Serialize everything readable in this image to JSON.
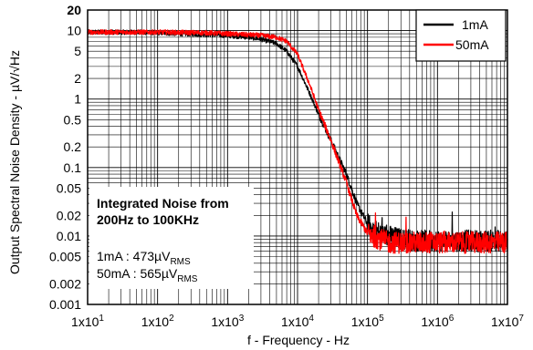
{
  "chart_data": {
    "type": "line",
    "xlabel": "f - Frequency - Hz",
    "ylabel": "Output Spectral Noise Density - µV/√Hz",
    "x_scale": "log",
    "y_scale": "log",
    "xlim": [
      10,
      10000000
    ],
    "ylim": [
      0.001,
      20
    ],
    "x_ticks": [
      {
        "value": 10,
        "label": "1x10",
        "exp": "1"
      },
      {
        "value": 100,
        "label": "1x10",
        "exp": "2"
      },
      {
        "value": 1000,
        "label": "1x10",
        "exp": "3"
      },
      {
        "value": 10000,
        "label": "1x10",
        "exp": "4"
      },
      {
        "value": 100000,
        "label": "1x10",
        "exp": "5"
      },
      {
        "value": 1000000,
        "label": "1x10",
        "exp": "6"
      },
      {
        "value": 10000000,
        "label": "1x10",
        "exp": "7"
      }
    ],
    "y_ticks": [
      {
        "value": 20,
        "label": "20",
        "bold": true
      },
      {
        "value": 10,
        "label": "10"
      },
      {
        "value": 5,
        "label": "5"
      },
      {
        "value": 2,
        "label": "2"
      },
      {
        "value": 1,
        "label": "1"
      },
      {
        "value": 0.5,
        "label": "0.5"
      },
      {
        "value": 0.2,
        "label": "0.2"
      },
      {
        "value": 0.1,
        "label": "0.1"
      },
      {
        "value": 0.05,
        "label": "0.05"
      },
      {
        "value": 0.02,
        "label": "0.02"
      },
      {
        "value": 0.01,
        "label": "0.01"
      },
      {
        "value": 0.005,
        "label": "0.005"
      },
      {
        "value": 0.002,
        "label": "0.002"
      },
      {
        "value": 0.001,
        "label": "0.001"
      }
    ],
    "grid": true,
    "legend": {
      "position": "top-right"
    },
    "series": [
      {
        "name": "1mA",
        "color": "#000000",
        "x": [
          10,
          20,
          50,
          100,
          200,
          500,
          1000,
          2000,
          3000,
          5000,
          7000,
          10000,
          15000,
          20000,
          30000,
          50000,
          70000,
          100000,
          150000,
          200000,
          300000,
          500000,
          1000000,
          2000000,
          5000000,
          10000000
        ],
        "y": [
          9.5,
          9.5,
          9.5,
          9.3,
          9.0,
          8.8,
          8.5,
          8.0,
          7.5,
          6.5,
          5.0,
          3.0,
          1.2,
          0.6,
          0.25,
          0.08,
          0.03,
          0.015,
          0.011,
          0.01,
          0.009,
          0.0085,
          0.0085,
          0.0085,
          0.0085,
          0.0085
        ]
      },
      {
        "name": "50mA",
        "color": "#ff0000",
        "x": [
          10,
          20,
          50,
          100,
          200,
          500,
          1000,
          2000,
          3000,
          5000,
          7000,
          10000,
          15000,
          20000,
          30000,
          50000,
          70000,
          100000,
          150000,
          200000,
          300000,
          500000,
          1000000,
          2000000,
          5000000,
          10000000
        ],
        "y": [
          9.5,
          9.5,
          9.5,
          9.5,
          9.4,
          9.3,
          9.0,
          8.7,
          8.5,
          8.0,
          7.0,
          4.5,
          1.6,
          0.7,
          0.25,
          0.06,
          0.02,
          0.011,
          0.009,
          0.008,
          0.008,
          0.008,
          0.008,
          0.008,
          0.008,
          0.008
        ]
      }
    ],
    "annotation": {
      "title_line1": "Integrated Noise from",
      "title_line2": "200Hz to 100KHz",
      "line1_main": "1mA : 473µV",
      "line1_sub": "RMS",
      "line2_main": "50mA : 565µV",
      "line2_sub": "RMS"
    }
  }
}
